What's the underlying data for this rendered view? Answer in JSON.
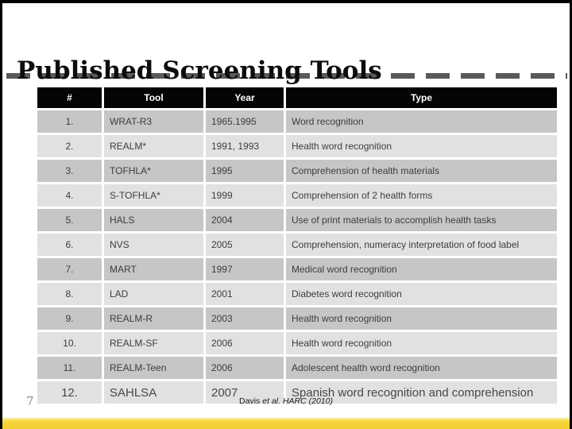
{
  "slide": {
    "title": "Published Screening Tools",
    "page_number": "7",
    "citation_author": "Davis",
    "citation_rest": "et al. HARC (2010)"
  },
  "colors": {
    "accent_bar_yellow": "#F2CD32",
    "header_bg": "#050505",
    "header_text": "#FFFFFF",
    "row_dark_gray": "#C6C6C6",
    "row_light_gray": "#E1E1E1",
    "dash_rule_gray": "#5A5A5A",
    "body_text": "#3D3D3D"
  },
  "table": {
    "headers": [
      "#",
      "Tool",
      "Year",
      "Type"
    ],
    "rows": [
      {
        "num": "1.",
        "tool": "WRAT-R3",
        "year": "1965.1995",
        "type": "Word recognition"
      },
      {
        "num": "2.",
        "tool": "REALM*",
        "year": "1991, 1993",
        "type": "Health word recognition"
      },
      {
        "num": "3.",
        "tool": "TOFHLA*",
        "year": "1995",
        "type": "Comprehension of health materials"
      },
      {
        "num": "4.",
        "tool": "S-TOFHLA*",
        "year": "1999",
        "type": "Comprehension of 2 health forms"
      },
      {
        "num": "5.",
        "tool": "HALS",
        "year": "2004",
        "type": "Use of print materials to accomplish health tasks"
      },
      {
        "num": "6.",
        "tool": "NVS",
        "year": "2005",
        "type": "Comprehension, numeracy interpretation of food label"
      },
      {
        "num": "7.",
        "tool": "MART",
        "year": "1997",
        "type": "Medical word recognition"
      },
      {
        "num": "8.",
        "tool": "LAD",
        "year": "2001",
        "type": "Diabetes word recognition"
      },
      {
        "num": "9.",
        "tool": "REALM-R",
        "year": "2003",
        "type": "Health word recognition"
      },
      {
        "num": "10.",
        "tool": "REALM-SF",
        "year": "2006",
        "type": "Health word recognition"
      },
      {
        "num": "11.",
        "tool": "REALM-Teen",
        "year": "2006",
        "type": "Adolescent health word recognition"
      },
      {
        "num": "12.",
        "tool": "SAHLSA",
        "year": "2007",
        "type": "Spanish word recognition and comprehension"
      }
    ]
  }
}
